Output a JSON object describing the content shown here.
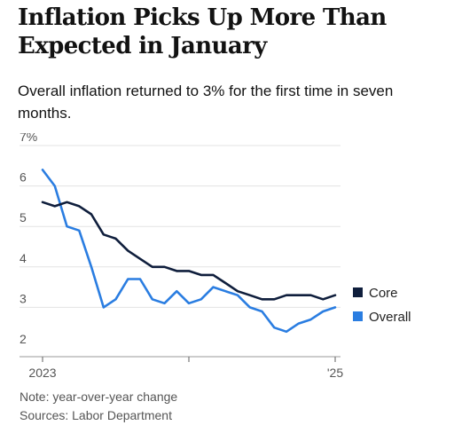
{
  "headline": "Inflation Picks Up More Than Expected in January",
  "subtitle": "Overall inflation returned to 3% for the first time in seven months.",
  "notes": {
    "note": "Note: year-over-year change",
    "source": "Sources: Labor Department"
  },
  "chart_data": {
    "type": "line",
    "title": "",
    "xlabel": "",
    "ylabel": "",
    "ylim": [
      2,
      7
    ],
    "y_ticks": [
      "7%",
      "6",
      "5",
      "4",
      "3",
      "2"
    ],
    "x_tick_labels": [
      {
        "month_index": 0,
        "label": "2023"
      },
      {
        "month_index": 12,
        "label": ""
      },
      {
        "month_index": 24,
        "label": "'25"
      }
    ],
    "x": [
      "Jan 2023",
      "Feb 2023",
      "Mar 2023",
      "Apr 2023",
      "May 2023",
      "Jun 2023",
      "Jul 2023",
      "Aug 2023",
      "Sep 2023",
      "Oct 2023",
      "Nov 2023",
      "Dec 2023",
      "Jan 2024",
      "Feb 2024",
      "Mar 2024",
      "Apr 2024",
      "May 2024",
      "Jun 2024",
      "Jul 2024",
      "Aug 2024",
      "Sep 2024",
      "Oct 2024",
      "Nov 2024",
      "Dec 2024",
      "Jan 2025"
    ],
    "series": [
      {
        "name": "Core",
        "color": "#0f1e3c",
        "values": [
          5.6,
          5.5,
          5.6,
          5.5,
          5.3,
          4.8,
          4.7,
          4.4,
          4.2,
          4.0,
          4.0,
          3.9,
          3.9,
          3.8,
          3.8,
          3.6,
          3.4,
          3.3,
          3.2,
          3.2,
          3.3,
          3.3,
          3.3,
          3.2,
          3.3
        ]
      },
      {
        "name": "Overall",
        "color": "#2a7de1",
        "values": [
          6.4,
          6.0,
          5.0,
          4.9,
          4.0,
          3.0,
          3.2,
          3.7,
          3.7,
          3.2,
          3.1,
          3.4,
          3.1,
          3.2,
          3.5,
          3.4,
          3.3,
          3.0,
          2.9,
          2.5,
          2.4,
          2.6,
          2.7,
          2.9,
          3.0
        ]
      }
    ],
    "grid": "horizontal",
    "legend": "right"
  }
}
